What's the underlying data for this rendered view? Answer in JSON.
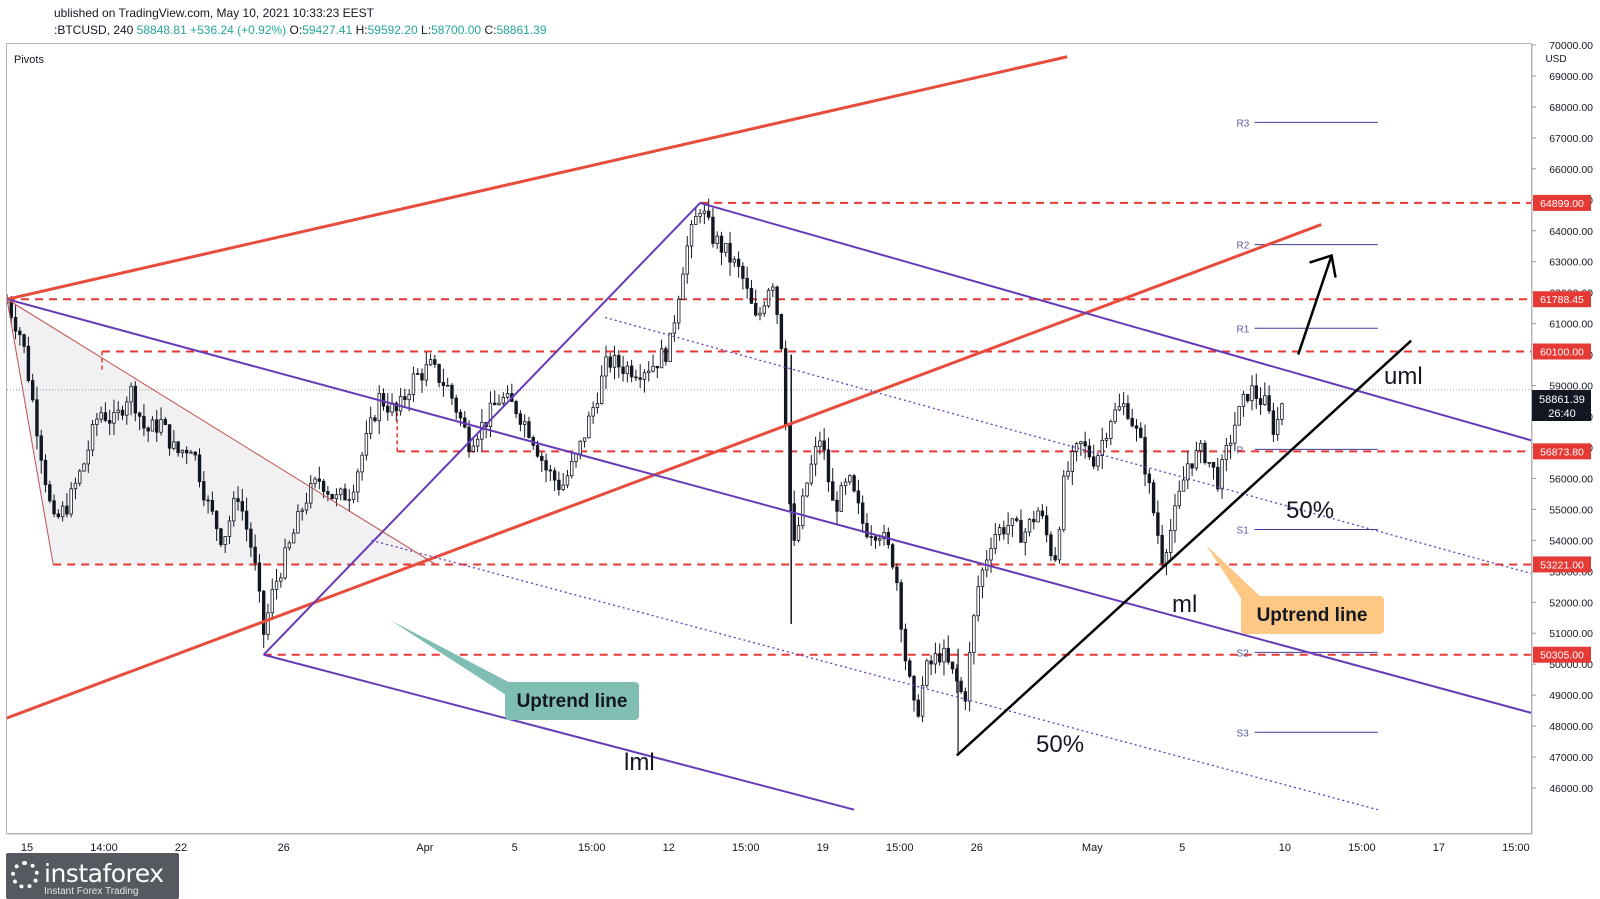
{
  "header": {
    "published": "ublished on TradingView.com, May 10, 2021 10:33:23 EEST",
    "symbol": ":BTCUSD, 240",
    "last": "58848.81",
    "change": "+536.24 (+0.92%)",
    "open_label": "O:",
    "open": "59427.41",
    "high_label": "H:",
    "high": "59592.20",
    "low_label": "L:",
    "low": "58700.00",
    "close_label": "C:",
    "close": "58861.39"
  },
  "indicator_label": "Pivots",
  "currency_label": "USD",
  "price_badge": {
    "price": "58861.39",
    "countdown": "26:40"
  },
  "annotations": {
    "uml": "uml",
    "ml": "ml",
    "lml": "lml",
    "pct_upper": "50%",
    "pct_lower": "50%",
    "callout_green": "Uptrend line",
    "callout_orange": "Uptrend line"
  },
  "logo": {
    "name": "instaforex",
    "tagline": "Instant Forex Trading"
  },
  "colors": {
    "bull": "#26a69a",
    "bear": "#ef5350",
    "candle": "#131722",
    "red_level": "#e53935",
    "red_line": "#e84c3d",
    "purple": "#673ab7",
    "callout_green": "#80bdb3",
    "callout_orange": "#fcc883"
  },
  "chart_data": {
    "type": "candlestick",
    "timeframe": "240",
    "ylim": [
      45000,
      70000
    ],
    "y_ticks": [
      46000,
      47000,
      48000,
      49000,
      50000,
      51000,
      52000,
      53000,
      54000,
      55000,
      56000,
      57000,
      58000,
      59000,
      60000,
      61000,
      62000,
      63000,
      64000,
      65000,
      66000,
      67000,
      68000,
      69000,
      70000
    ],
    "y_tick_labels": [
      "46000.00",
      "47000.00",
      "48000.00",
      "49000.00",
      "50000.00",
      "51000.00",
      "52000.00",
      "53000.00",
      "54000.00",
      "55000.00",
      "56000.00",
      "57000.00",
      "58000.00",
      "59000.00",
      "60000.00",
      "61000.00",
      "62000.00",
      "63000.00",
      "64000.00",
      "65000.00",
      "66000.00",
      "67000.00",
      "68000.00",
      "69000.00",
      "70000.00"
    ],
    "x_ticks": [
      {
        "label": "15",
        "x": 0
      },
      {
        "label": "14:00",
        "x": 3
      },
      {
        "label": "22",
        "x": 6
      },
      {
        "label": "26",
        "x": 10
      },
      {
        "label": "Apr",
        "x": 15.5
      },
      {
        "label": "5",
        "x": 19
      },
      {
        "label": "15:00",
        "x": 22
      },
      {
        "label": "12",
        "x": 25
      },
      {
        "label": "15:00",
        "x": 28
      },
      {
        "label": "19",
        "x": 31
      },
      {
        "label": "15:00",
        "x": 34
      },
      {
        "label": "26",
        "x": 37
      },
      {
        "label": "May",
        "x": 41.5
      },
      {
        "label": "5",
        "x": 45
      },
      {
        "label": "10",
        "x": 49
      },
      {
        "label": "15:00",
        "x": 52
      },
      {
        "label": "17",
        "x": 55
      },
      {
        "label": "15:00",
        "x": 58
      }
    ],
    "close_path": [
      [
        0,
        61700
      ],
      [
        0.6,
        60500
      ],
      [
        1.2,
        57500
      ],
      [
        1.8,
        54500
      ],
      [
        2.4,
        55200
      ],
      [
        3,
        56500
      ],
      [
        3.6,
        58200
      ],
      [
        4.2,
        57800
      ],
      [
        4.8,
        58900
      ],
      [
        5.4,
        57500
      ],
      [
        6,
        57800
      ],
      [
        6.6,
        56800
      ],
      [
        7.2,
        57100
      ],
      [
        7.8,
        55200
      ],
      [
        8.4,
        54000
      ],
      [
        9,
        55500
      ],
      [
        9.6,
        53500
      ],
      [
        10,
        51000
      ],
      [
        10.4,
        52500
      ],
      [
        11,
        53800
      ],
      [
        11.6,
        55300
      ],
      [
        12.2,
        56000
      ],
      [
        12.8,
        55300
      ],
      [
        13.4,
        55600
      ],
      [
        14,
        57200
      ],
      [
        14.5,
        58600
      ],
      [
        15.2,
        58100
      ],
      [
        15.8,
        59200
      ],
      [
        16.5,
        59600
      ],
      [
        17.2,
        58900
      ],
      [
        18,
        57200
      ],
      [
        18.6,
        57800
      ],
      [
        19.2,
        58600
      ],
      [
        19.8,
        58300
      ],
      [
        20.4,
        57500
      ],
      [
        21,
        56300
      ],
      [
        21.6,
        55700
      ],
      [
        22.2,
        56700
      ],
      [
        22.8,
        58200
      ],
      [
        23.4,
        59800
      ],
      [
        24,
        59600
      ],
      [
        24.6,
        59500
      ],
      [
        25.2,
        59700
      ],
      [
        25.8,
        60200
      ],
      [
        26.4,
        63200
      ],
      [
        27,
        64800
      ],
      [
        27.5,
        63800
      ],
      [
        28,
        63300
      ],
      [
        28.6,
        62600
      ],
      [
        29.2,
        61000
      ],
      [
        29.8,
        62600
      ],
      [
        30.2,
        60200
      ],
      [
        30.6,
        53500
      ],
      [
        31.2,
        56000
      ],
      [
        31.7,
        57400
      ],
      [
        32.2,
        55000
      ],
      [
        32.8,
        55900
      ],
      [
        33.4,
        54400
      ],
      [
        34,
        54300
      ],
      [
        34.6,
        53200
      ],
      [
        35,
        50200
      ],
      [
        35.4,
        48200
      ],
      [
        35.8,
        49800
      ],
      [
        36.4,
        50400
      ],
      [
        37,
        49400
      ],
      [
        37.3,
        48800
      ],
      [
        37.8,
        52400
      ],
      [
        38.4,
        54200
      ],
      [
        39,
        54500
      ],
      [
        39.6,
        54200
      ],
      [
        40.2,
        55000
      ],
      [
        40.8,
        53300
      ],
      [
        41.2,
        56000
      ],
      [
        41.8,
        57100
      ],
      [
        42.4,
        56600
      ],
      [
        43,
        58000
      ],
      [
        43.6,
        58400
      ],
      [
        44.2,
        57000
      ],
      [
        44.6,
        55200
      ],
      [
        45,
        53500
      ],
      [
        45.4,
        54500
      ],
      [
        46,
        56500
      ],
      [
        46.6,
        56900
      ],
      [
        47.2,
        55900
      ],
      [
        47.8,
        57700
      ],
      [
        48.4,
        58900
      ],
      [
        49,
        58400
      ],
      [
        49.4,
        57500
      ],
      [
        49.8,
        59000
      ]
    ],
    "horizontal_levels": [
      {
        "price": 64899.0,
        "label": "64899.00",
        "style": "dashed",
        "color": "#e53935",
        "from_x": 27.0
      },
      {
        "price": 61788.45,
        "label": "61788.45",
        "style": "dashed",
        "color": "#e53935",
        "from_x": 0
      },
      {
        "price": 60100.0,
        "label": "60100.00",
        "style": "dashed",
        "color": "#e53935",
        "from_x": 3.7
      },
      {
        "price": 56873.8,
        "label": "56873.80",
        "style": "dashed",
        "color": "#e53935",
        "from_x": 15.2
      },
      {
        "price": 53221.0,
        "label": "53221.00",
        "style": "dashed",
        "color": "#e53935",
        "from_x": 1.8
      },
      {
        "price": 50305.0,
        "label": "50305.00",
        "style": "dashed",
        "color": "#e53935",
        "from_x": 10
      }
    ],
    "pivots": [
      {
        "name": "R3",
        "price": 67500
      },
      {
        "name": "R2",
        "price": 63550
      },
      {
        "name": "R1",
        "price": 60850
      },
      {
        "name": "P",
        "price": 56940
      },
      {
        "name": "S1",
        "price": 54350
      },
      {
        "name": "S2",
        "price": 50380
      },
      {
        "name": "S3",
        "price": 47800
      }
    ],
    "trend_lines": [
      {
        "name": "upper-red-channel",
        "color": "#e84c3d",
        "from": [
          0,
          61788
        ],
        "to": [
          41.3,
          69620
        ]
      },
      {
        "name": "lower-red-channel",
        "color": "#e84c3d",
        "from": [
          -0.2,
          48200
        ],
        "to": [
          51.2,
          64200
        ]
      },
      {
        "name": "pitchfork-handle",
        "color": "#673ab7",
        "from": [
          10,
          50305
        ],
        "to": [
          27,
          64899
        ]
      },
      {
        "name": "uml",
        "color": "#673ab7",
        "from": [
          27,
          64899
        ],
        "to": [
          59.5,
          57200
        ]
      },
      {
        "name": "ml",
        "color": "#673ab7",
        "from": [
          0,
          61788
        ],
        "to": [
          59.5,
          48400
        ]
      },
      {
        "name": "lml",
        "color": "#673ab7",
        "from": [
          10,
          50305
        ],
        "to": [
          33,
          45300
        ]
      },
      {
        "name": "upper-50pct",
        "color": "#673ab7",
        "style": "dotted",
        "from": [
          23.3,
          61200
        ],
        "to": [
          59.5,
          52900
        ]
      },
      {
        "name": "lower-50pct",
        "color": "#673ab7",
        "style": "dotted",
        "from": [
          14.2,
          54000
        ],
        "to": [
          53.4,
          45300
        ]
      },
      {
        "name": "uptrend-line",
        "color": "#000000",
        "from": [
          37.0,
          47050
        ],
        "to": [
          54.7,
          60450
        ]
      },
      {
        "name": "triangle-upper",
        "color": "#c0504d",
        "from": [
          0,
          61788
        ],
        "to": [
          16.7,
          53221
        ]
      },
      {
        "name": "triangle-left",
        "color": "#c0504d",
        "from": [
          0,
          61788
        ],
        "to": [
          1.8,
          53221
        ]
      }
    ],
    "projection_arrow": {
      "from": [
        50.3,
        60000
      ],
      "to": [
        51.6,
        63200
      ]
    }
  }
}
